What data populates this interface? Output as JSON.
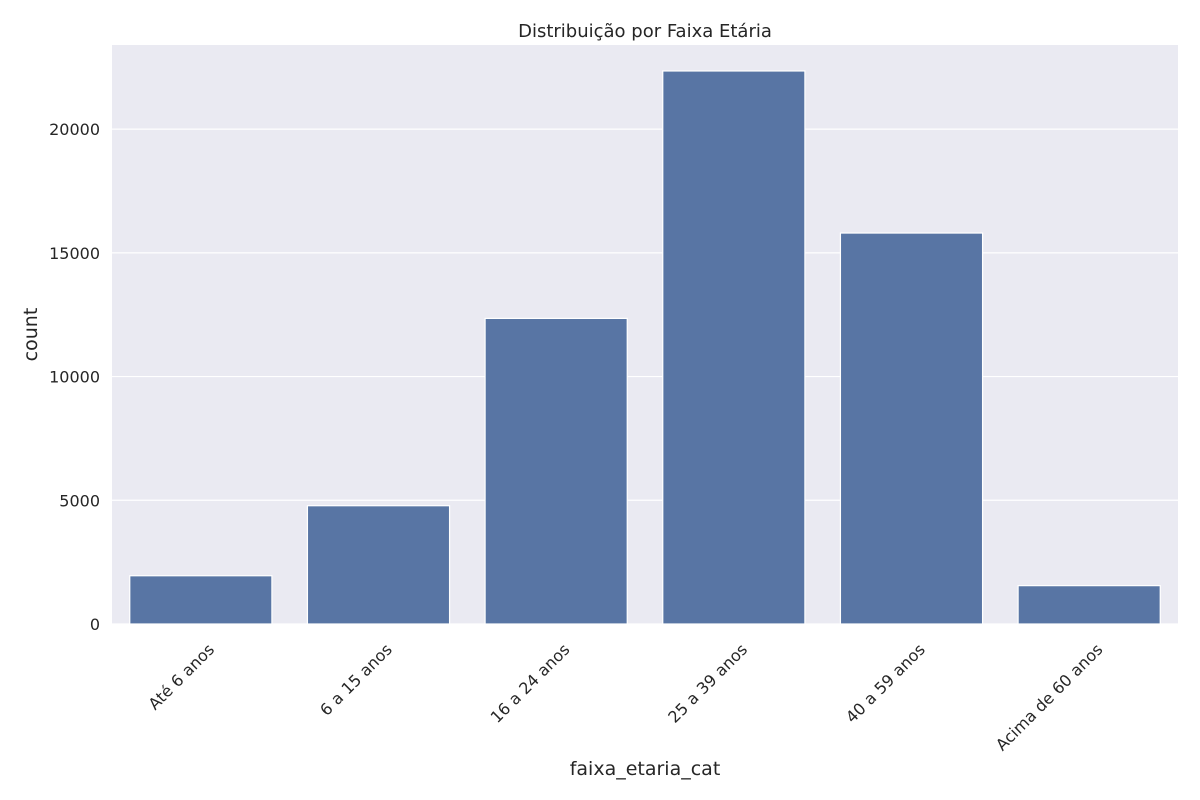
{
  "chart_data": {
    "type": "bar",
    "title": "Distribuição por Faixa Etária",
    "xlabel": "faixa_etaria_cat",
    "ylabel": "count",
    "categories": [
      "Até 6 anos",
      "6 a 15 anos",
      "16 a 24 anos",
      "25 a 39 anos",
      "40 a 59 anos",
      "Acima de 60 anos"
    ],
    "values": [
      1950,
      4780,
      12350,
      22350,
      15800,
      1550
    ],
    "ylim": [
      0,
      23400
    ],
    "yticks": [
      0,
      5000,
      10000,
      15000,
      20000
    ],
    "ytick_labels": [
      "0",
      "5000",
      "10000",
      "15000",
      "20000"
    ],
    "grid": true,
    "bar_color": "#5875a4",
    "plot_background": "#eaeaf2"
  }
}
